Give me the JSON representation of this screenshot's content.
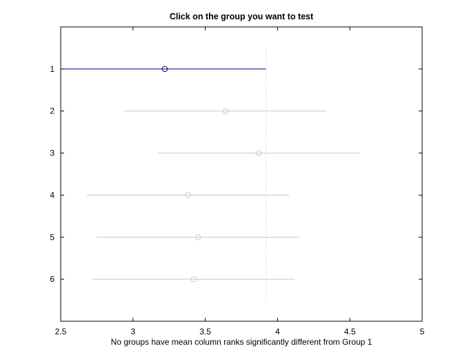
{
  "chart_data": {
    "type": "scatter",
    "title": "Click on the group you want to test",
    "xlabel": "No groups have mean column ranks significantly different from Group 1",
    "ylabel": "",
    "xlim": [
      2.5,
      5
    ],
    "ylim": [
      0,
      7
    ],
    "y_reversed": true,
    "xticks": [
      "2.5",
      "3",
      "3.5",
      "4",
      "4.5",
      "5"
    ],
    "xtick_values": [
      2.5,
      3,
      3.5,
      4,
      4.5,
      5
    ],
    "yticks": [
      "1",
      "2",
      "3",
      "4",
      "5",
      "6"
    ],
    "yticks_values": [
      1,
      2,
      3,
      4,
      5,
      6
    ],
    "grid": false,
    "groups": [
      {
        "label": "1",
        "mean": 3.22,
        "low": 2.5,
        "high": 3.92,
        "selected": true
      },
      {
        "label": "2",
        "mean": 3.64,
        "low": 2.94,
        "high": 4.34,
        "selected": false
      },
      {
        "label": "3",
        "mean": 3.87,
        "low": 3.17,
        "high": 4.57,
        "selected": false
      },
      {
        "label": "4",
        "mean": 3.38,
        "low": 2.68,
        "high": 4.08,
        "selected": false
      },
      {
        "label": "5",
        "mean": 3.45,
        "low": 2.75,
        "high": 4.15,
        "selected": false
      },
      {
        "label": "6",
        "mean": 3.42,
        "low": 2.72,
        "high": 4.12,
        "selected": false
      }
    ],
    "reference_line_x": 3.92,
    "colors": {
      "selected": "#00007f",
      "other": "#c8c8c8",
      "reference": "#c8c8c8",
      "axes": "#000000"
    }
  }
}
